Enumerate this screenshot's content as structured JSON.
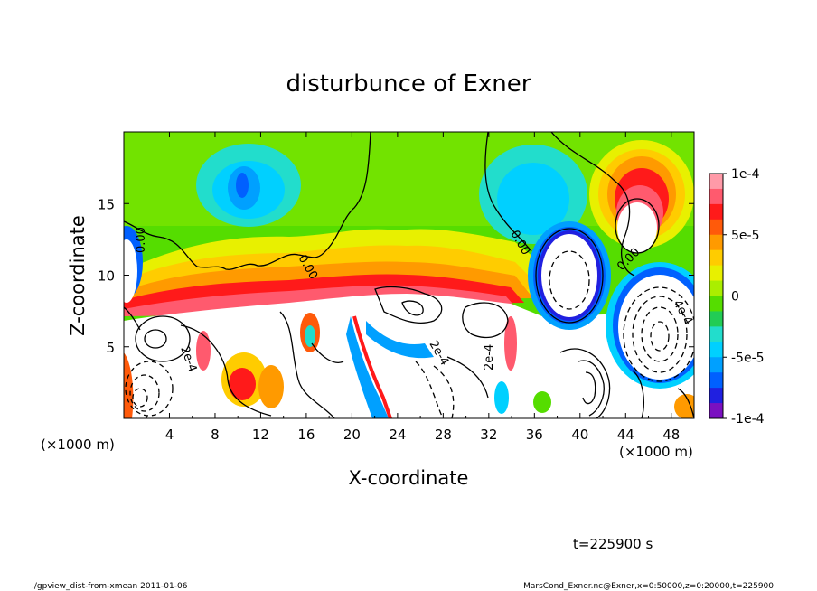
{
  "chart_data": {
    "type": "heatmap",
    "title": "disturbunce of Exner",
    "xlabel": "X-coordinate",
    "ylabel": "Z-coordinate",
    "x_unit": "(×1000 m)",
    "z_unit": "(×1000 m)",
    "xlim": [
      0,
      50
    ],
    "ylim": [
      0,
      20
    ],
    "x_ticks": [
      "4",
      "8",
      "12",
      "16",
      "20",
      "24",
      "28",
      "32",
      "36",
      "40",
      "44",
      "48"
    ],
    "y_ticks": [
      "5",
      "10",
      "15"
    ],
    "colorbar": {
      "min": -0.0001,
      "max": 0.0001,
      "tick_labels": [
        "1e-4",
        "5e-5",
        "0",
        "-5e-5",
        "-1e-4"
      ],
      "colors": [
        "#ff9aa8",
        "#ff5a6e",
        "#ff1a1a",
        "#ff5a0a",
        "#ff9a00",
        "#ffcc00",
        "#e8f000",
        "#aaee00",
        "#55dd00",
        "#22cc55",
        "#22ddcc",
        "#00d0ff",
        "#00a0ff",
        "#0060ff",
        "#2020e0",
        "#7a10c0"
      ]
    },
    "contour_labels": [
      "0.00",
      "0.00",
      "0.00",
      "0.00",
      "2e-4",
      "2e-4",
      "2e-4",
      "4e-4"
    ],
    "annotation": "t=225900 s"
  },
  "footer": {
    "left": "./gpview_dist-from-xmean  2011-01-06",
    "right": "MarsCond_Exner.nc@Exner,x=0:50000,z=0:20000,t=225900"
  }
}
